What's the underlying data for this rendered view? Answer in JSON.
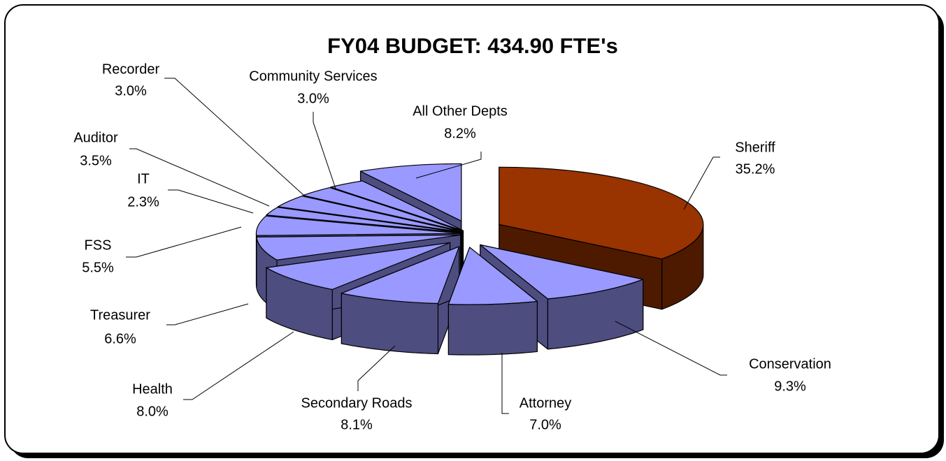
{
  "chart_data": {
    "type": "pie",
    "title": "FY04 BUDGET:  434.90 FTE's",
    "categories": [
      "Sheriff",
      "Conservation",
      "Attorney",
      "Secondary Roads",
      "Health",
      "Treasurer",
      "FSS",
      "IT",
      "Auditor",
      "Recorder",
      "Community Services",
      "All Other Depts"
    ],
    "values": [
      35.2,
      9.3,
      7.0,
      8.1,
      8.0,
      6.6,
      5.5,
      2.3,
      3.5,
      3.0,
      3.0,
      8.2
    ],
    "value_labels": [
      "35.2%",
      "9.3%",
      "7.0%",
      "8.1%",
      "8.0%",
      "6.6%",
      "5.5%",
      "2.3%",
      "3.5%",
      "3.0%",
      "3.0%",
      "8.2%"
    ],
    "colors": [
      "#993300",
      "#9999ff",
      "#9999ff",
      "#9999ff",
      "#9999ff",
      "#9999ff",
      "#9999ff",
      "#9999ff",
      "#9999ff",
      "#9999ff",
      "#9999ff",
      "#9999ff"
    ]
  }
}
